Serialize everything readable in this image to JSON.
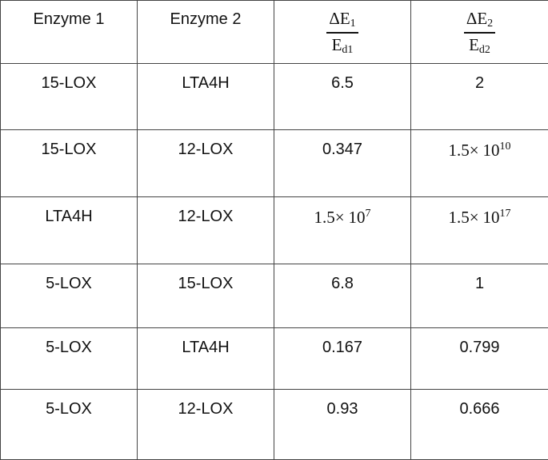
{
  "table": {
    "header": [
      {
        "text": "Enzyme 1"
      },
      {
        "text": "Enzyme 2"
      },
      {
        "numerator": "ΔE",
        "numerator_sub": "1",
        "denominator": "E",
        "denominator_sub": "d1"
      },
      {
        "numerator": "ΔE",
        "numerator_sub": "2",
        "denominator": "E",
        "denominator_sub": "d2"
      }
    ],
    "rows": [
      [
        "15-LOX",
        "LTA4H",
        "6.5",
        "2"
      ],
      [
        "15-LOX",
        "12-LOX",
        "0.347",
        {
          "mantissa": "1.5×",
          "base": "10",
          "exponent": "10"
        }
      ],
      [
        "LTA4H",
        "12-LOX",
        {
          "mantissa": "1.5×",
          "base": "10",
          "exponent": "7"
        },
        {
          "mantissa": "1.5×",
          "base": "10",
          "exponent": "17"
        }
      ],
      [
        "5-LOX",
        "15-LOX",
        "6.8",
        "1"
      ],
      [
        "5-LOX",
        "LTA4H",
        "0.167",
        "0.799"
      ],
      [
        "5-LOX",
        "12-LOX",
        "0.93",
        "0.666"
      ]
    ]
  }
}
